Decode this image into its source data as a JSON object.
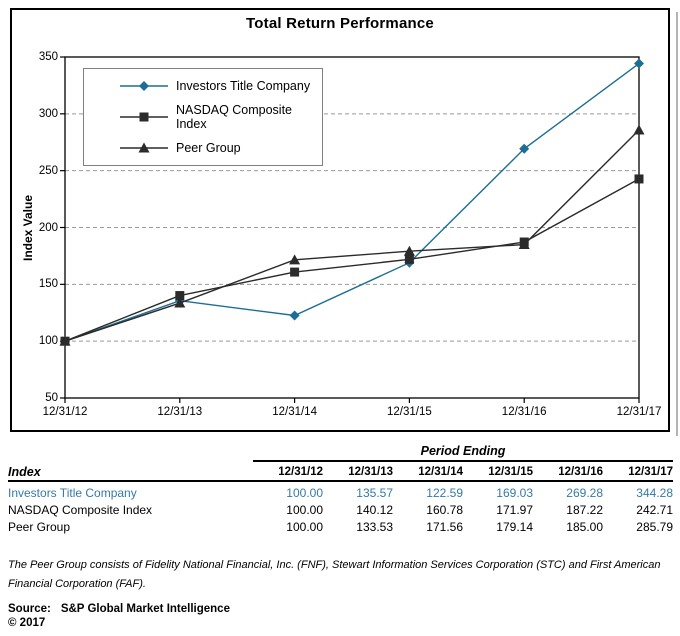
{
  "chart_data": {
    "type": "line",
    "title": "Total Return Performance",
    "ylabel": "Index Value",
    "xlabel": "",
    "x": [
      "12/31/12",
      "12/31/13",
      "12/31/14",
      "12/31/15",
      "12/31/16",
      "12/31/17"
    ],
    "series": [
      {
        "name": "Investors Title Company",
        "marker": "diamond",
        "color": "#1d6e96",
        "values": [
          100.0,
          135.57,
          122.59,
          169.03,
          269.28,
          344.28
        ]
      },
      {
        "name": "NASDAQ Composite Index",
        "marker": "square",
        "color": "#2b2b2b",
        "values": [
          100.0,
          140.12,
          160.78,
          171.97,
          187.22,
          242.71
        ]
      },
      {
        "name": "Peer Group",
        "marker": "triangle",
        "color": "#2b2b2b",
        "values": [
          100.0,
          133.53,
          171.56,
          179.14,
          185.0,
          285.79
        ]
      }
    ],
    "ylim": [
      50,
      350
    ],
    "ytick_interval": 50,
    "grid": "horizontal-dashed",
    "legend_position": "upper-left-inside"
  },
  "colors": {
    "accent_teal_line": "#1d6e96",
    "accent_teal_text": "#3579a8",
    "gridline": "#9a9a9a",
    "axis": "#000000",
    "legend_border": "#808080",
    "shadow": "#b4b4b4"
  },
  "table": {
    "group_header": "Period Ending",
    "index_header": "Index",
    "columns": [
      "12/31/12",
      "12/31/13",
      "12/31/14",
      "12/31/15",
      "12/31/16",
      "12/31/17"
    ],
    "rows": [
      {
        "label": "Investors Title Company",
        "text_color": "#3579a8",
        "values": [
          "100.00",
          "135.57",
          "122.59",
          "169.03",
          "269.28",
          "344.28"
        ]
      },
      {
        "label": "NASDAQ Composite Index",
        "text_color": "#000000",
        "values": [
          "100.00",
          "140.12",
          "160.78",
          "171.97",
          "187.22",
          "242.71"
        ]
      },
      {
        "label": "Peer Group",
        "text_color": "#000000",
        "values": [
          "100.00",
          "133.53",
          "171.56",
          "179.14",
          "185.00",
          "285.79"
        ]
      }
    ]
  },
  "footnote": {
    "text": "The Peer Group consists of Fidelity National Financial, Inc. (FNF), Stewart Information Services Corporation (STC) and First American Financial Corporation (FAF)."
  },
  "source": {
    "label": "Source:",
    "value": "S&P Global Market Intelligence",
    "copyright": "© 2017"
  }
}
